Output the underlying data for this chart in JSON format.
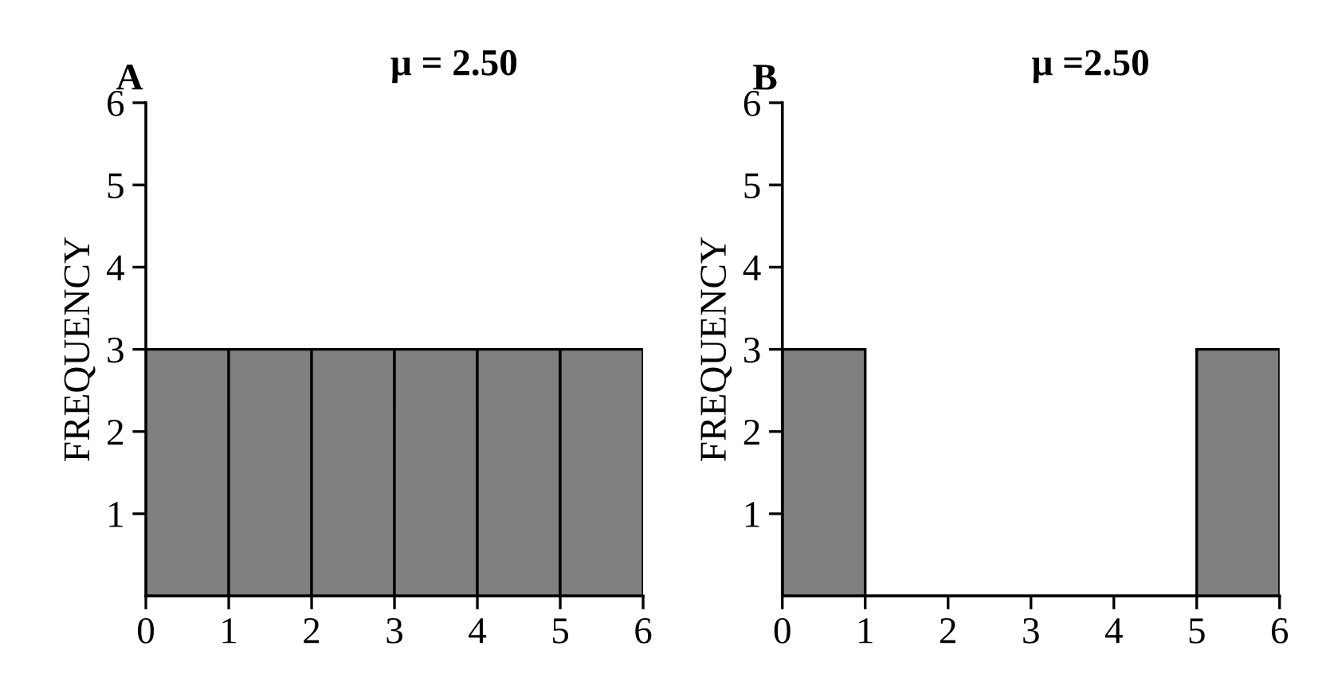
{
  "chart_data": [
    {
      "type": "histogram",
      "title": "A",
      "annotations": [
        "μ = 2.50"
      ],
      "ylabel": "FREQUENCY",
      "bins": [
        0,
        1,
        2,
        3,
        4,
        5,
        6
      ],
      "values": [
        3,
        3,
        3,
        3,
        3,
        3
      ],
      "color": "#808080",
      "xlim": [
        0,
        6
      ],
      "xticks": [
        0,
        1,
        2,
        3,
        4,
        5,
        6
      ],
      "ylim": [
        0,
        6
      ],
      "yticks": [
        1,
        2,
        3,
        4,
        5,
        6
      ],
      "grid": false,
      "legend": false
    },
    {
      "type": "histogram",
      "title": "B",
      "annotations": [
        "μ =2.50"
      ],
      "ylabel": "FREQUENCY",
      "bins": [
        0,
        1,
        2,
        3,
        4,
        5,
        6
      ],
      "values": [
        3,
        0,
        0,
        0,
        0,
        3
      ],
      "color": "#808080",
      "xlim": [
        0,
        6
      ],
      "xticks": [
        0,
        1,
        2,
        3,
        4,
        5,
        6
      ],
      "ylim": [
        0,
        6
      ],
      "yticks": [
        1,
        2,
        3,
        4,
        5,
        6
      ],
      "grid": false,
      "legend": false
    }
  ]
}
